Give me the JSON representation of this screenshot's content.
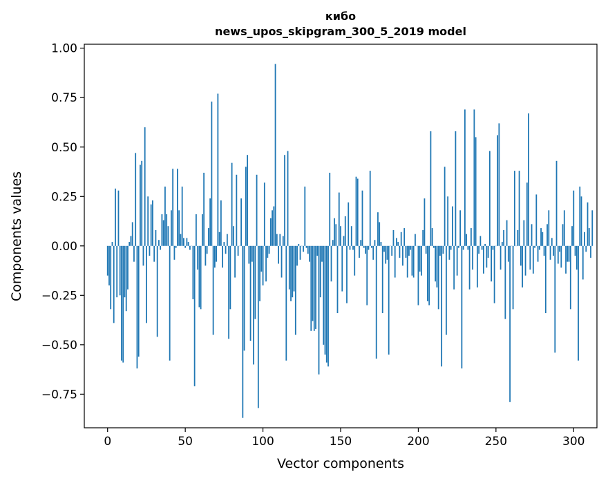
{
  "chart_data": {
    "type": "bar",
    "title": "кибо",
    "subtitle": "news_upos_skipgram_300_5_2019 model",
    "xlabel": "Vector components",
    "ylabel": "Components values",
    "xlim": [
      -15,
      315
    ],
    "ylim": [
      -0.92,
      1.02
    ],
    "xticks": [
      0,
      50,
      100,
      150,
      200,
      250,
      300
    ],
    "yticks": [
      -0.75,
      -0.5,
      -0.25,
      0.0,
      0.25,
      0.5,
      0.75,
      1.0
    ],
    "xtick_labels": [
      "0",
      "50",
      "100",
      "150",
      "200",
      "250",
      "300"
    ],
    "ytick_labels": [
      "−0.75",
      "−0.50",
      "−0.25",
      "0.00",
      "0.25",
      "0.50",
      "0.75",
      "1.00"
    ],
    "bar_color": "#1f77b4",
    "values": [
      -0.15,
      -0.2,
      -0.32,
      0.02,
      -0.39,
      0.29,
      -0.26,
      0.28,
      -0.25,
      -0.58,
      -0.59,
      -0.26,
      -0.33,
      -0.22,
      0.02,
      0.05,
      0.12,
      -0.08,
      0.47,
      -0.62,
      -0.56,
      0.41,
      0.43,
      -0.1,
      0.6,
      -0.39,
      0.25,
      -0.05,
      0.21,
      0.23,
      -0.08,
      0.08,
      -0.46,
      0.03,
      -0.02,
      0.16,
      0.13,
      0.3,
      0.16,
      0.1,
      -0.58,
      0.18,
      0.39,
      -0.07,
      -0.01,
      0.39,
      0.18,
      0.06,
      0.3,
      0.04,
      -0.01,
      0.04,
      0.02,
      -0.02,
      0.0,
      -0.27,
      -0.71,
      0.16,
      -0.12,
      -0.31,
      -0.32,
      0.16,
      0.37,
      -0.1,
      -0.04,
      0.09,
      0.24,
      0.73,
      -0.45,
      -0.11,
      -0.08,
      0.77,
      0.07,
      0.23,
      -0.11,
      0.02,
      -0.04,
      0.06,
      -0.47,
      -0.32,
      0.42,
      0.1,
      -0.16,
      0.36,
      -0.05,
      0.0,
      0.24,
      -0.87,
      -0.53,
      0.4,
      0.46,
      -0.09,
      -0.48,
      -0.08,
      -0.6,
      -0.37,
      0.36,
      -0.82,
      -0.28,
      -0.13,
      -0.2,
      0.32,
      -0.18,
      -0.06,
      -0.04,
      0.14,
      0.18,
      0.2,
      0.92,
      0.06,
      -0.09,
      0.06,
      -0.16,
      0.05,
      0.46,
      -0.58,
      0.48,
      -0.22,
      -0.28,
      -0.26,
      -0.23,
      -0.45,
      -0.1,
      0.01,
      -0.07,
      0.0,
      -0.03,
      0.3,
      -0.01,
      -0.04,
      -0.08,
      -0.43,
      -0.38,
      -0.43,
      -0.42,
      -0.05,
      -0.65,
      -0.26,
      -0.08,
      -0.5,
      -0.55,
      -0.59,
      -0.61,
      0.37,
      -0.18,
      0.03,
      0.14,
      0.11,
      -0.34,
      0.27,
      0.1,
      -0.23,
      0.05,
      0.15,
      -0.29,
      0.22,
      -0.02,
      0.1,
      -0.02,
      -0.15,
      0.35,
      0.34,
      -0.06,
      0.03,
      0.28,
      -0.01,
      -0.04,
      -0.3,
      -0.02,
      0.38,
      -0.01,
      -0.07,
      0.03,
      -0.57,
      0.17,
      0.12,
      0.02,
      -0.34,
      -0.03,
      -0.09,
      -0.07,
      -0.55,
      0.0,
      -0.05,
      0.08,
      -0.16,
      0.04,
      0.02,
      -0.06,
      0.07,
      -0.1,
      0.09,
      -0.06,
      -0.16,
      -0.05,
      -0.02,
      -0.15,
      -0.16,
      0.06,
      0.0,
      -0.3,
      -0.13,
      -0.15,
      0.08,
      0.24,
      -0.04,
      -0.28,
      -0.3,
      0.58,
      0.09,
      -0.01,
      -0.18,
      -0.21,
      -0.32,
      -0.05,
      -0.61,
      -0.04,
      0.4,
      -0.45,
      0.25,
      -0.07,
      -0.02,
      0.2,
      -0.22,
      0.58,
      -0.15,
      -0.01,
      0.18,
      -0.62,
      -0.02,
      0.69,
      0.06,
      -0.02,
      -0.22,
      0.09,
      -0.12,
      0.69,
      0.55,
      -0.21,
      -0.04,
      0.05,
      -0.02,
      -0.14,
      0.01,
      -0.11,
      -0.06,
      0.48,
      -0.18,
      -0.02,
      -0.29,
      0.0,
      0.56,
      0.62,
      -0.12,
      0.02,
      0.08,
      -0.37,
      0.13,
      -0.08,
      -0.79,
      0.0,
      -0.32,
      0.38,
      0.0,
      0.08,
      0.38,
      -0.1,
      -0.21,
      0.13,
      -0.15,
      0.32,
      0.67,
      -0.12,
      0.11,
      -0.14,
      -0.01,
      0.26,
      -0.08,
      -0.02,
      0.09,
      0.07,
      -0.05,
      -0.34,
      0.11,
      0.18,
      -0.07,
      0.04,
      -0.05,
      -0.54,
      0.43,
      -0.09,
      -0.03,
      -0.11,
      0.11,
      0.18,
      -0.14,
      -0.08,
      -0.08,
      -0.32,
      0.1,
      0.28,
      -0.05,
      -0.12,
      -0.58,
      0.3,
      0.25,
      -0.17,
      0.07,
      -0.03,
      0.22,
      0.09,
      -0.06,
      0.18
    ]
  }
}
